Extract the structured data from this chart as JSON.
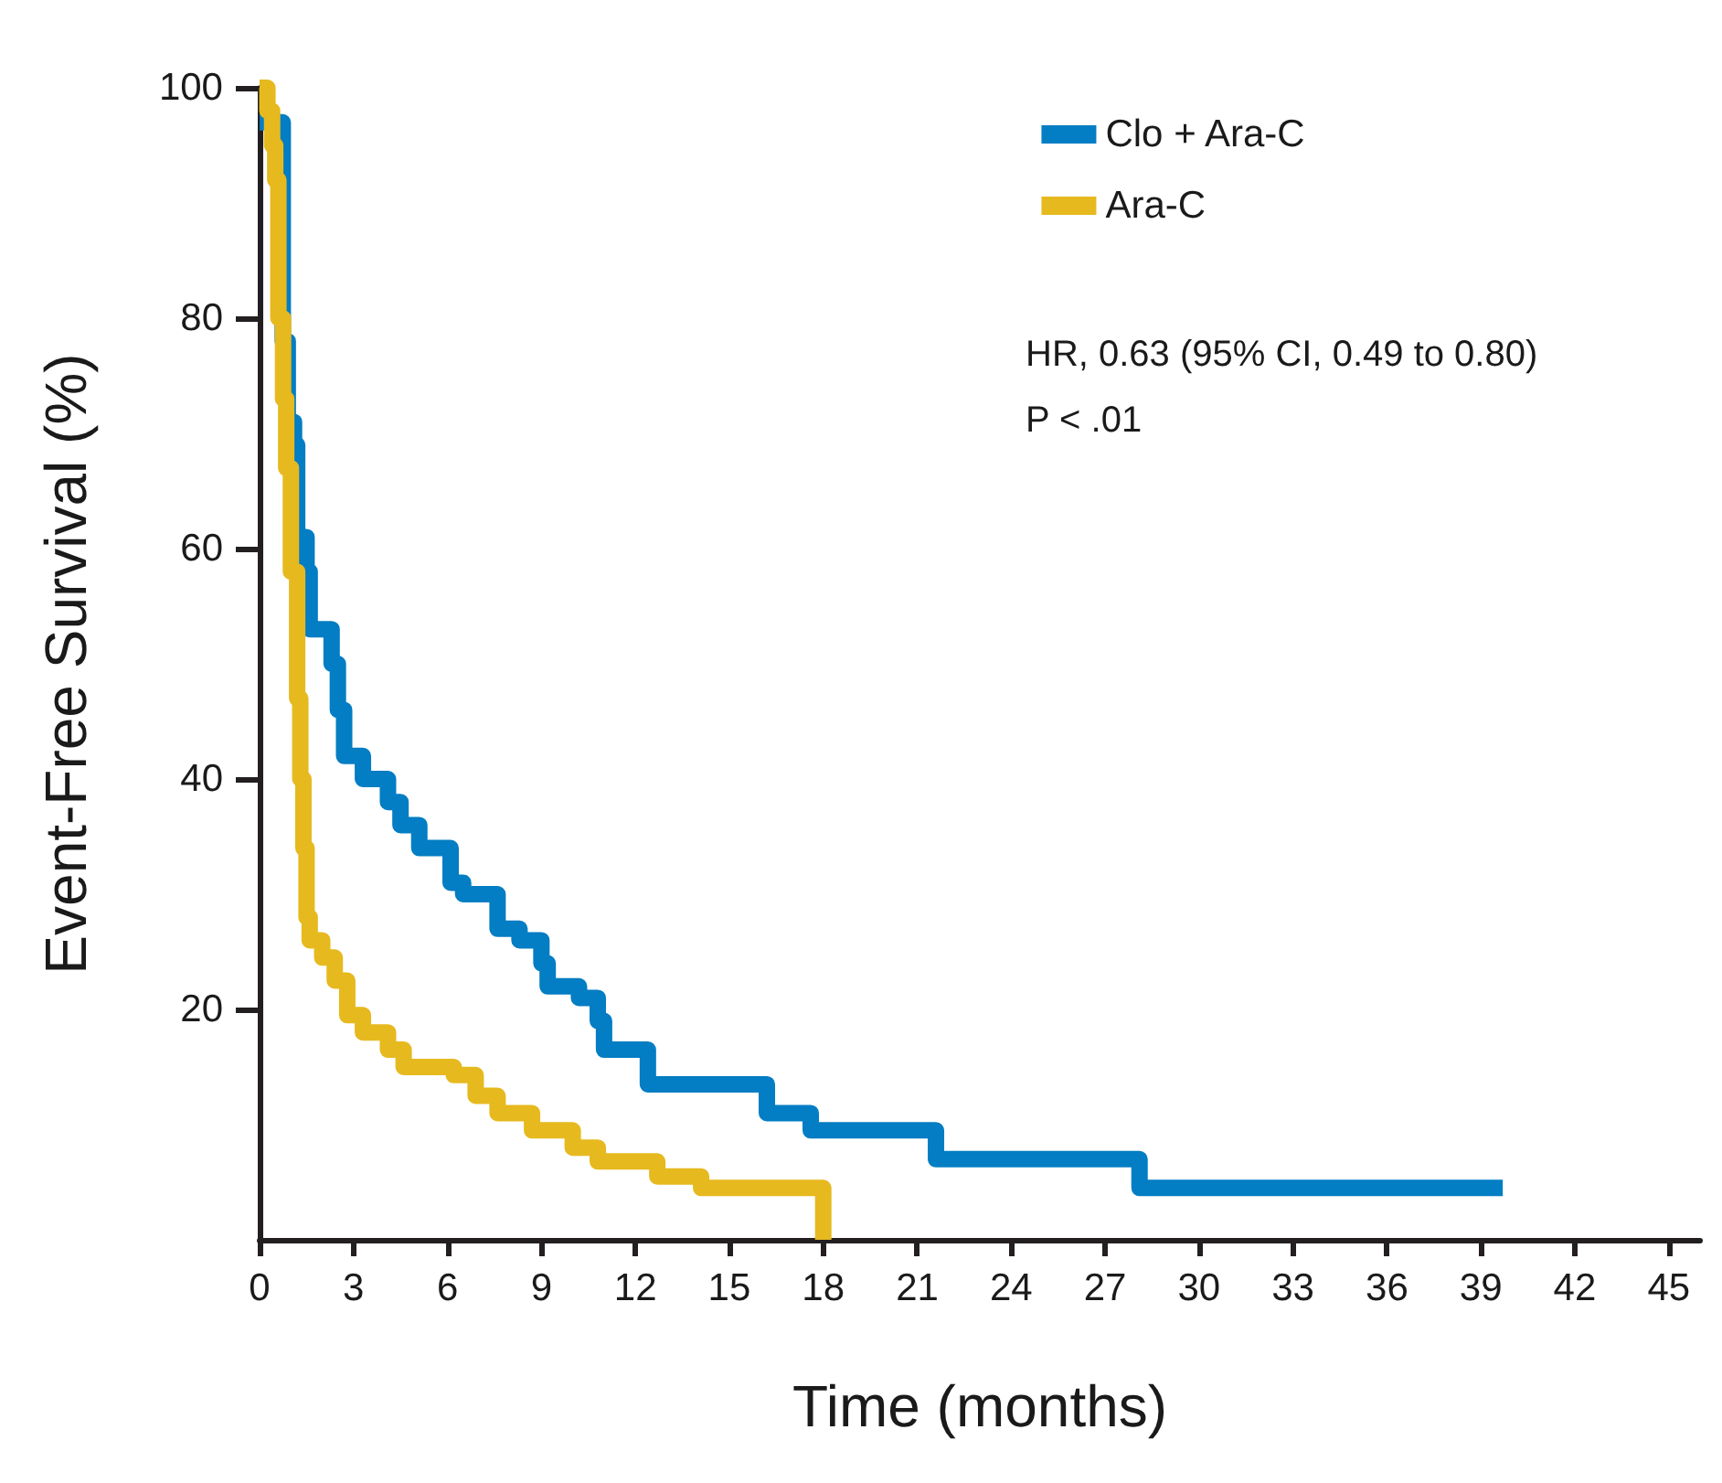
{
  "chart_data": {
    "type": "step",
    "xlabel": "Time (months)",
    "ylabel": "Event-Free Survival (%)",
    "series": [
      {
        "name": "Clo + Ara-C",
        "color": "#037dc3",
        "x": [
          0,
          0.74,
          0.9,
          1.1,
          1.2,
          1.5,
          1.6,
          2.3,
          2.5,
          2.7,
          3.3,
          4.1,
          4.5,
          5.1,
          6.1,
          6.5,
          7.6,
          8.3,
          9.0,
          9.2,
          10.2,
          10.8,
          11.0,
          12.4,
          16.2,
          17.6,
          21.6,
          28.1,
          39.7
        ],
        "values": [
          97,
          78,
          71,
          69,
          61,
          58,
          53,
          50,
          46,
          42,
          40,
          38,
          36,
          34,
          31,
          30,
          27,
          26,
          24,
          22,
          21,
          19,
          16.5,
          13.5,
          11,
          9.5,
          7,
          4.5,
          4.5
        ]
      },
      {
        "name": "Ara-C",
        "color": "#e6b91f",
        "x": [
          0,
          0.25,
          0.4,
          0.5,
          0.6,
          0.75,
          0.85,
          1.0,
          1.2,
          1.3,
          1.4,
          1.5,
          1.6,
          2.0,
          2.4,
          2.8,
          3.3,
          4.1,
          4.6,
          6.2,
          6.9,
          7.6,
          8.7,
          10.0,
          10.8,
          12.7,
          14.1,
          18
        ],
        "values": [
          100,
          98,
          95,
          92,
          80,
          73,
          67,
          58,
          47,
          40,
          34,
          28,
          26,
          24.5,
          22.5,
          19.5,
          18,
          16.5,
          15,
          14.3,
          12.5,
          11,
          9.5,
          8,
          6.8,
          5.5,
          4.5,
          0
        ]
      }
    ],
    "xlim": [
      0,
      46
    ],
    "xticks": [
      0,
      3,
      6,
      9,
      12,
      15,
      18,
      21,
      24,
      27,
      30,
      33,
      36,
      39,
      42,
      45
    ],
    "ylim": [
      0,
      100
    ],
    "yticks": [
      20,
      40,
      60,
      80,
      100
    ],
    "legend": "top right",
    "grid": false,
    "marker": "none",
    "line_style": "solid",
    "annotations": [
      "HR, 0.63 (95% CI, 0.49 to 0.80)",
      "P < .01"
    ]
  }
}
